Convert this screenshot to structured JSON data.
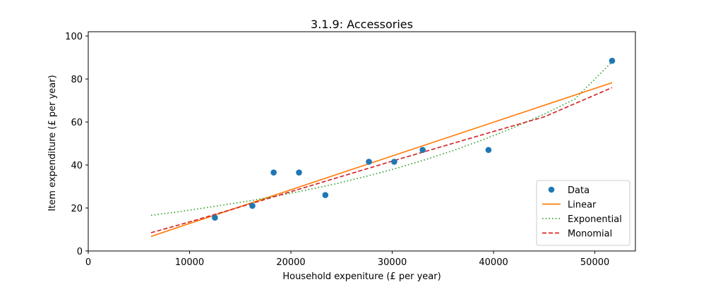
{
  "chart_data": {
    "type": "scatter",
    "title": "3.1.9: Accessories",
    "xlabel": "Household expeniture (£ per year)",
    "ylabel": "Item expenditure (£ per year)",
    "xlim": [
      0,
      54000
    ],
    "ylim": [
      0,
      102
    ],
    "xticks": [
      0,
      10000,
      20000,
      30000,
      40000,
      50000
    ],
    "yticks": [
      0,
      20,
      40,
      60,
      80,
      100
    ],
    "grid": false,
    "legend_position": "bottom-right",
    "series": [
      {
        "name": "Data",
        "kind": "points",
        "color": "#1f77b4",
        "x": [
          12500,
          16200,
          18300,
          20800,
          23400,
          27700,
          30200,
          33000,
          39500,
          51700
        ],
        "y": [
          15.5,
          21,
          36.5,
          36.5,
          26,
          41.5,
          41.5,
          47,
          47,
          88.5
        ]
      },
      {
        "name": "Linear",
        "kind": "line",
        "style": "solid",
        "color": "#ff7f0e",
        "x": [
          6200,
          51700
        ],
        "y": [
          6.8,
          78.3
        ]
      },
      {
        "name": "Exponential",
        "kind": "line",
        "style": "dotted",
        "color": "#2ca02c",
        "x": [
          6200,
          9000,
          12000,
          15000,
          18000,
          21000,
          24000,
          27000,
          30000,
          33000,
          36000,
          39000,
          42000,
          45000,
          48000,
          51700
        ],
        "y": [
          16.6,
          18.3,
          20.4,
          22.6,
          25.0,
          27.8,
          30.8,
          34.2,
          37.9,
          42.1,
          46.7,
          51.8,
          57.4,
          63.7,
          70.6,
          88.0
        ]
      },
      {
        "name": "Monomial",
        "kind": "line",
        "style": "dashed",
        "color": "#d62728",
        "x": [
          6200,
          10000,
          15000,
          20000,
          25000,
          30000,
          35000,
          40000,
          45000,
          51700
        ],
        "y": [
          8.5,
          13.5,
          20.5,
          27.6,
          34.7,
          41.8,
          48.7,
          55.6,
          62.4,
          76.0
        ]
      }
    ]
  }
}
